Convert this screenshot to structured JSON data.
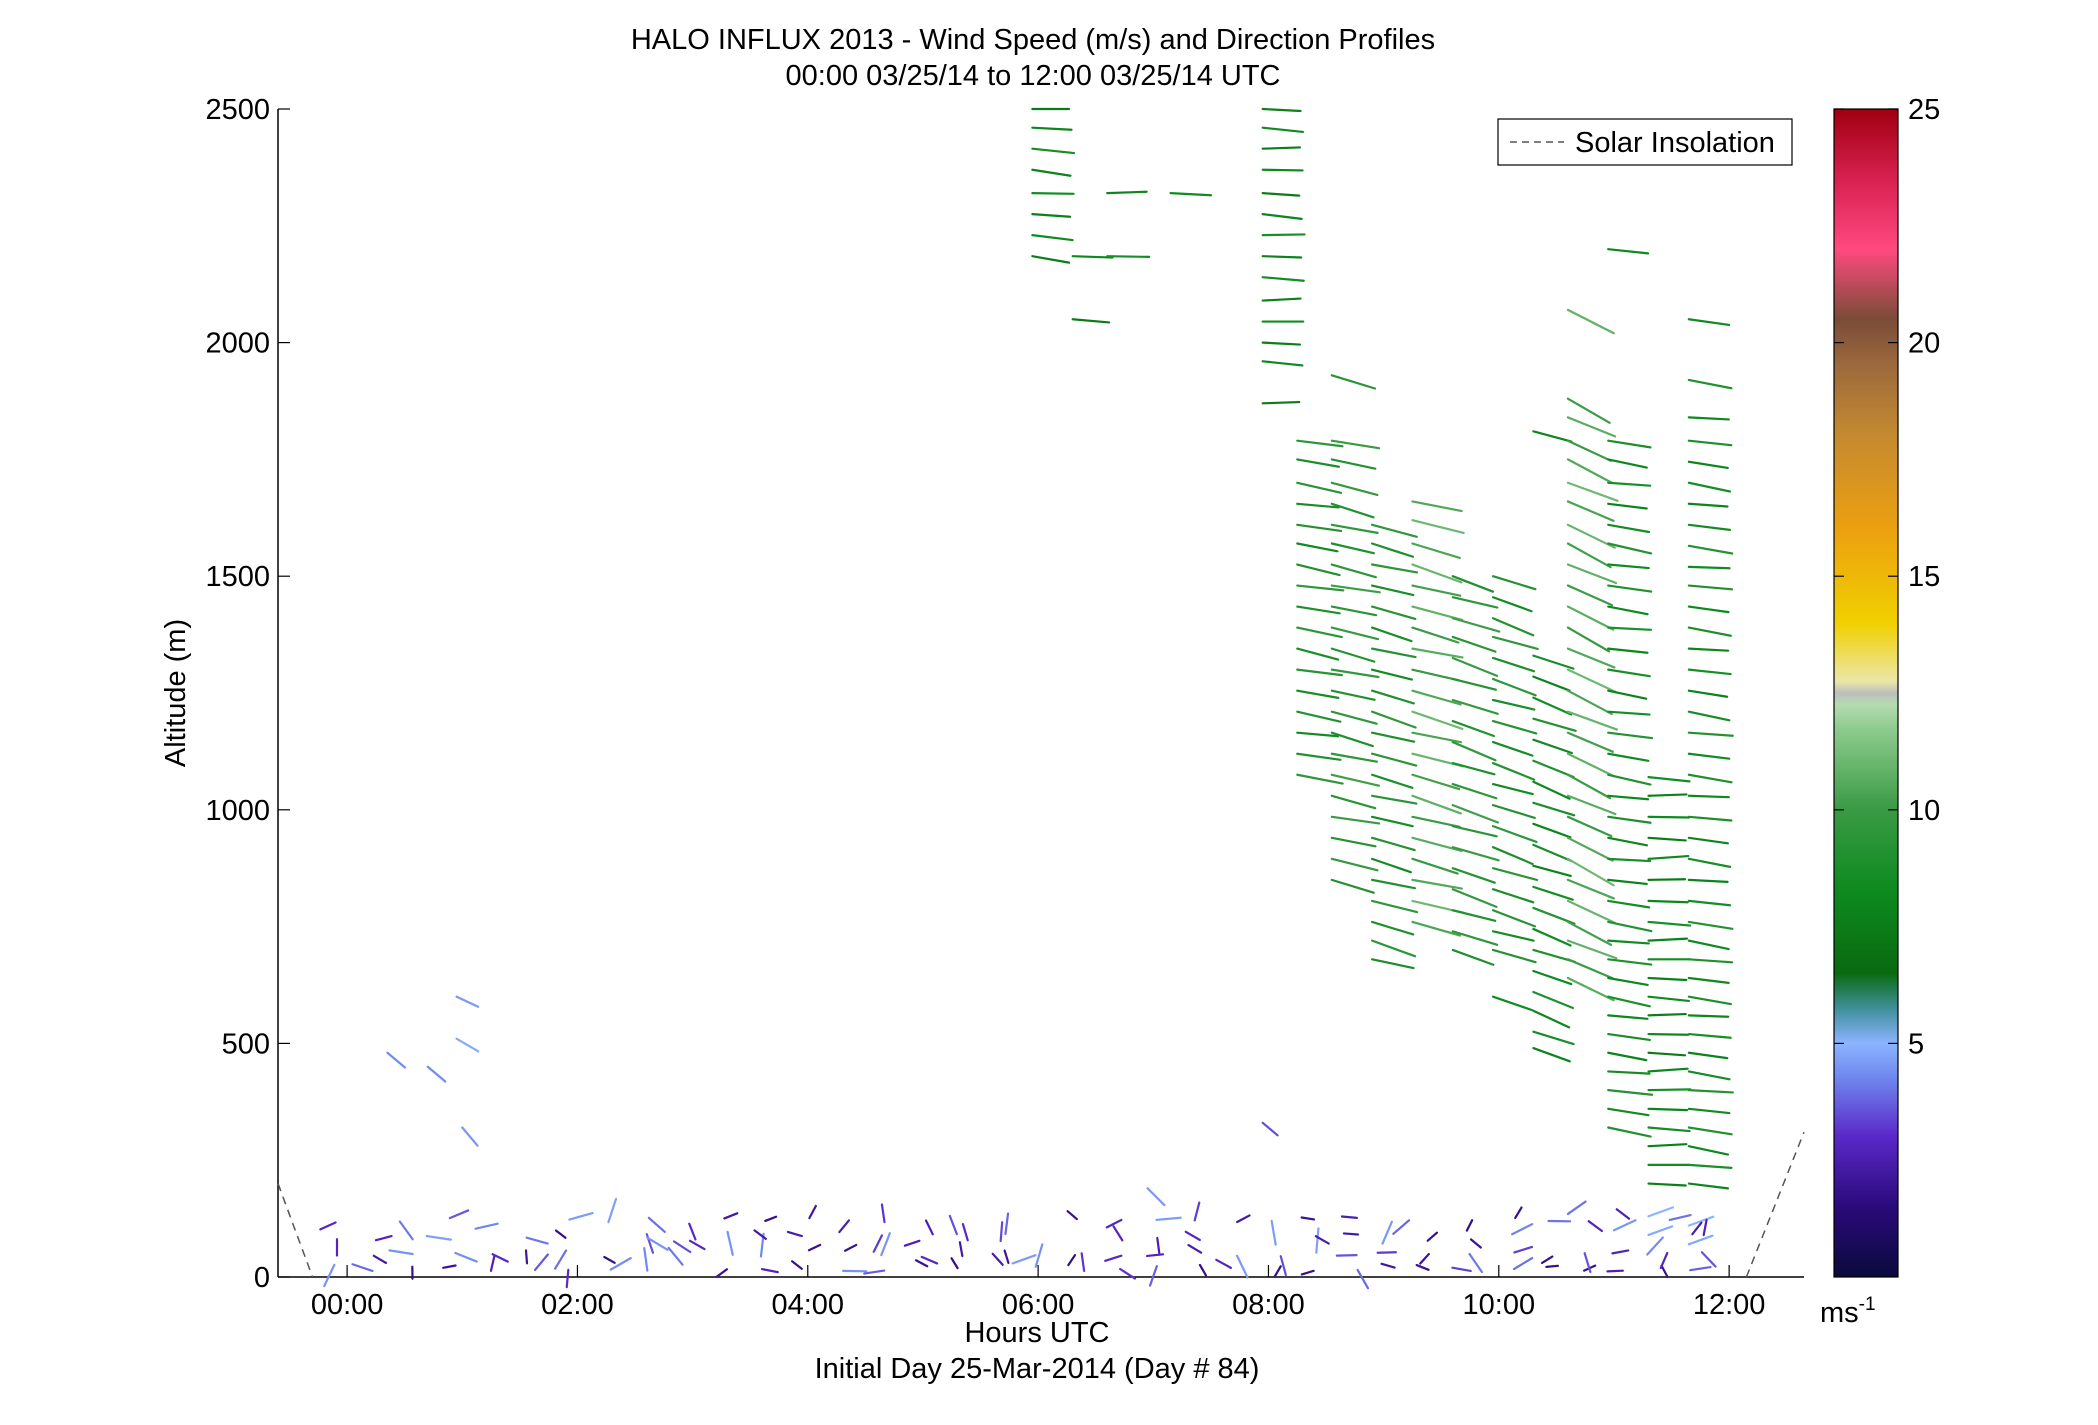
{
  "chart_data": {
    "type": "quiver",
    "title": "HALO INFLUX 2013 - Wind Speed (m/s) and Direction Profiles",
    "subtitle": "00:00 03/25/14 to 12:00 03/25/14  UTC",
    "xlabel": "Hours UTC",
    "xlabel2": "Initial Day 25-Mar-2014 (Day # 84)",
    "ylabel": "Altitude (m)",
    "xlim": [
      -0.6,
      12.65
    ],
    "ylim": [
      0,
      2500
    ],
    "x_ticks": [
      {
        "value": 0,
        "label": "00:00"
      },
      {
        "value": 2,
        "label": "02:00"
      },
      {
        "value": 4,
        "label": "04:00"
      },
      {
        "value": 6,
        "label": "06:00"
      },
      {
        "value": 8,
        "label": "08:00"
      },
      {
        "value": 10,
        "label": "10:00"
      },
      {
        "value": 12,
        "label": "12:00"
      }
    ],
    "y_ticks": [
      {
        "value": 0,
        "label": "0"
      },
      {
        "value": 500,
        "label": "500"
      },
      {
        "value": 1000,
        "label": "1000"
      },
      {
        "value": 1500,
        "label": "1500"
      },
      {
        "value": 2000,
        "label": "2000"
      },
      {
        "value": 2500,
        "label": "2500"
      }
    ],
    "legend": {
      "label": "Solar Insolation",
      "placement": "top-right",
      "style": "dashed",
      "color": "#555555"
    },
    "colorbar": {
      "range": [
        0,
        25
      ],
      "unit_label": "ms",
      "unit_exponent": "-1",
      "ticks": [
        {
          "value": 5,
          "label": "5"
        },
        {
          "value": 10,
          "label": "10"
        },
        {
          "value": 15,
          "label": "15"
        },
        {
          "value": 20,
          "label": "20"
        },
        {
          "value": 25,
          "label": "25"
        }
      ]
    },
    "insolation": [
      [
        [
          -0.6,
          200
        ],
        [
          -0.3,
          0
        ]
      ],
      [
        [
          12.15,
          0
        ],
        [
          12.65,
          310
        ]
      ]
    ],
    "columns": [
      {
        "t": 5.95,
        "alts": [
          2500,
          2460,
          2415,
          2370,
          2320,
          2275,
          2230,
          2185
        ],
        "speed": 8.0,
        "dir": 275
      },
      {
        "t": 6.3,
        "alts": [
          2185,
          2050
        ],
        "speed": 8.0,
        "dir": 270
      },
      {
        "t": 6.6,
        "alts": [
          2320,
          2185
        ],
        "speed": 8.5,
        "dir": 270
      },
      {
        "t": 7.15,
        "alts": [
          2320
        ],
        "speed": 8.0,
        "dir": 268
      },
      {
        "t": 7.95,
        "alts": [
          2500,
          2460,
          2415,
          2370,
          2320,
          2275,
          2230,
          2185,
          2140,
          2090,
          2045,
          2000,
          1960,
          1870
        ],
        "speed": 8.0,
        "dir": 272
      },
      {
        "t": 8.25,
        "alts": [
          1790,
          1750,
          1700,
          1655,
          1610,
          1570,
          1525,
          1480,
          1435,
          1390,
          1345,
          1300,
          1255,
          1210,
          1165,
          1120,
          1075
        ],
        "speed": 9.0,
        "dir": 280
      },
      {
        "t": 8.55,
        "alts": [
          1930,
          1790,
          1750,
          1700,
          1655,
          1610,
          1570,
          1525,
          1480,
          1435,
          1390,
          1345,
          1300,
          1255,
          1210,
          1165,
          1120,
          1075,
          1030,
          985,
          940,
          895,
          850
        ],
        "speed": 9.5,
        "dir": 283
      },
      {
        "t": 8.9,
        "alts": [
          1610,
          1570,
          1525,
          1480,
          1435,
          1390,
          1345,
          1300,
          1255,
          1210,
          1165,
          1120,
          1075,
          1030,
          985,
          940,
          895,
          850,
          805,
          760,
          720,
          680
        ],
        "speed": 9.0,
        "dir": 285
      },
      {
        "t": 9.25,
        "alts": [
          1660,
          1620,
          1570,
          1525,
          1480,
          1435,
          1390,
          1345,
          1300,
          1255,
          1210,
          1165,
          1120,
          1075,
          1030,
          985,
          940,
          895,
          850,
          805,
          760
        ],
        "speed": 10.5,
        "dir": 285
      },
      {
        "t": 9.6,
        "alts": [
          1500,
          1455,
          1410,
          1370,
          1325,
          1280,
          1235,
          1190,
          1145,
          1100,
          1055,
          1010,
          965,
          920,
          875,
          830,
          785,
          740,
          700
        ],
        "speed": 9.5,
        "dir": 288
      },
      {
        "t": 9.95,
        "alts": [
          1500,
          1455,
          1410,
          1370,
          1325,
          1280,
          1235,
          1190,
          1145,
          1100,
          1055,
          1010,
          965,
          920,
          875,
          830,
          785,
          740,
          700,
          600
        ],
        "speed": 9.0,
        "dir": 288
      },
      {
        "t": 10.3,
        "alts": [
          1810,
          1330,
          1285,
          1240,
          1195,
          1150,
          1105,
          1060,
          1015,
          970,
          925,
          880,
          835,
          790,
          745,
          700,
          655,
          610,
          570,
          525,
          490
        ],
        "speed": 8.5,
        "dir": 290
      },
      {
        "t": 10.6,
        "alts": [
          2070,
          1880,
          1840,
          1790,
          1750,
          1700,
          1660,
          1610,
          1570,
          1525,
          1480,
          1435,
          1390,
          1345,
          1300,
          1255,
          1210,
          1165,
          1120,
          1075,
          1030,
          985,
          940,
          895,
          850,
          805,
          760,
          720,
          680,
          640
        ],
        "speed": 10.5,
        "dir": 295
      },
      {
        "t": 10.95,
        "alts": [
          2200,
          1790,
          1750,
          1700,
          1655,
          1610,
          1570,
          1525,
          1480,
          1435,
          1390,
          1345,
          1300,
          1255,
          1210,
          1165,
          1120,
          1075,
          1030,
          985,
          940,
          895,
          850,
          805,
          760,
          720,
          680,
          640,
          600,
          560,
          520,
          480,
          440,
          400,
          360,
          320
        ],
        "speed": 8.5,
        "dir": 278
      },
      {
        "t": 11.3,
        "alts": [
          1070,
          1030,
          985,
          940,
          895,
          850,
          805,
          760,
          720,
          680,
          640,
          600,
          560,
          520,
          480,
          440,
          400,
          360,
          320,
          280,
          240,
          200
        ],
        "speed": 8.0,
        "dir": 271
      },
      {
        "t": 11.65,
        "alts": [
          2050,
          1920,
          1840,
          1790,
          1745,
          1700,
          1655,
          1610,
          1565,
          1520,
          1480,
          1435,
          1390,
          1345,
          1300,
          1255,
          1210,
          1165,
          1120,
          1075,
          1030,
          985,
          940,
          895,
          850,
          805,
          760,
          720,
          680,
          640,
          600,
          560,
          520,
          480,
          440,
          400,
          360,
          320,
          280,
          240,
          200
        ],
        "speed": 8.5,
        "dir": 277
      }
    ],
    "isolated": [
      {
        "t": 0.95,
        "alt": 600,
        "speed": 4.5,
        "dir": 295
      },
      {
        "t": 0.95,
        "alt": 510,
        "speed": 4.8,
        "dir": 300
      },
      {
        "t": 0.35,
        "alt": 480,
        "speed": 4.3,
        "dir": 310
      },
      {
        "t": 0.7,
        "alt": 450,
        "speed": 4.3,
        "dir": 310
      },
      {
        "t": 1.0,
        "alt": 320,
        "speed": 4.5,
        "dir": 320
      },
      {
        "t": 7.95,
        "alt": 330,
        "speed": 3.5,
        "dir": 310
      },
      {
        "t": 6.95,
        "alt": 190,
        "speed": 4.5,
        "dir": 315
      },
      {
        "t": 11.3,
        "alt": 130,
        "speed": 5.0,
        "dir": 250
      },
      {
        "t": 11.65,
        "alt": 110,
        "speed": 5.0,
        "dir": 250
      },
      {
        "t": 11.0,
        "alt": 100,
        "speed": 4.5,
        "dir": 245
      },
      {
        "t": 10.6,
        "alt": 135,
        "speed": 4.0,
        "dir": 235
      },
      {
        "t": 11.65,
        "alt": 70,
        "speed": 4.8,
        "dir": 250
      },
      {
        "t": 11.3,
        "alt": 90,
        "speed": 4.8,
        "dir": 250
      }
    ],
    "near_surface": {
      "t_start": -0.1,
      "t_end": 11.8,
      "t_step": 0.34,
      "alts": [
        20,
        50,
        85,
        120
      ],
      "speed_range": [
        0.5,
        3.5
      ]
    }
  }
}
